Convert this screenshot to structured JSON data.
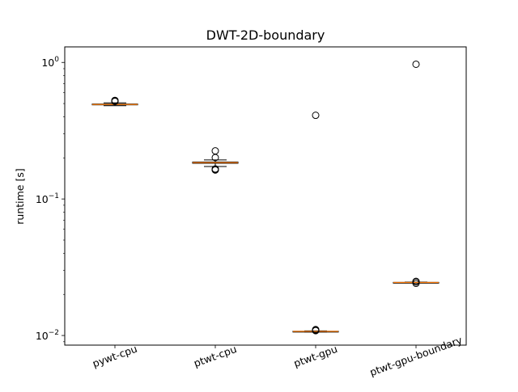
{
  "chart_data": {
    "type": "box",
    "title": "DWT-2D-boundary",
    "xlabel": "",
    "ylabel": "runtime [s]",
    "yscale": "log",
    "ylim": [
      0.0085,
      1.3
    ],
    "ytick_labels": [
      {
        "value": 1,
        "base": "10",
        "exp": "0"
      },
      {
        "value": 0.1,
        "base": "10",
        "exp": "−1"
      },
      {
        "value": 0.01,
        "base": "10",
        "exp": "−2"
      }
    ],
    "categories": [
      "pywt-cpu",
      "ptwt-cpu",
      "ptwt-gpu",
      "ptwt-gpu-boundary"
    ],
    "boxes": [
      {
        "category": "pywt-cpu",
        "whisker_low": 0.482,
        "q1": 0.489,
        "median": 0.492,
        "q3": 0.496,
        "whisker_high": 0.506,
        "outliers": [
          0.518,
          0.522,
          0.527
        ]
      },
      {
        "category": "ptwt-cpu",
        "whisker_low": 0.173,
        "q1": 0.1825,
        "median": 0.1845,
        "q3": 0.1865,
        "whisker_high": 0.193,
        "outliers": [
          0.163,
          0.1645,
          0.166,
          0.201,
          0.225
        ]
      },
      {
        "category": "ptwt-gpu",
        "whisker_low": 0.0106,
        "q1": 0.0107,
        "median": 0.01072,
        "q3": 0.01074,
        "whisker_high": 0.0108,
        "outliers": [
          0.01085,
          0.0109,
          0.01095,
          0.01105,
          0.41
        ]
      },
      {
        "category": "ptwt-gpu-boundary",
        "whisker_low": 0.0243,
        "q1": 0.0244,
        "median": 0.02445,
        "q3": 0.0245,
        "whisker_high": 0.0246,
        "outliers": [
          0.0241,
          0.0247,
          0.0249,
          0.97
        ]
      }
    ],
    "colors": {
      "box": "#000000",
      "median": "#ff7f0e",
      "outlier_edge": "#000000",
      "background": "#ffffff"
    },
    "grid": false,
    "legend": "none",
    "xtick_rotation_deg": 20
  }
}
